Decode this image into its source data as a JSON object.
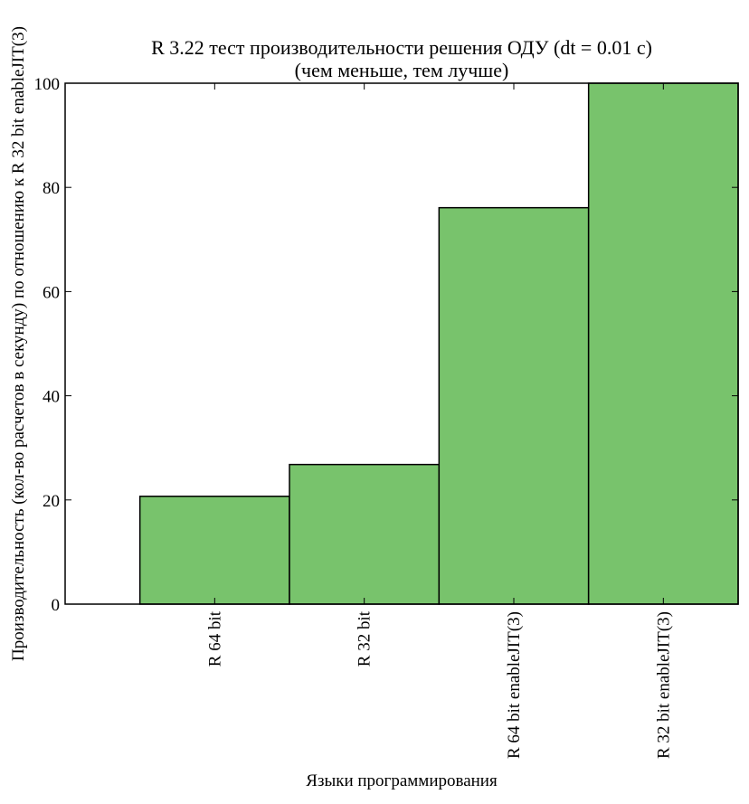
{
  "chart_data": {
    "type": "bar",
    "title_line1": "R 3.22 тест производительности решения ОДУ (dt = 0.01 с)",
    "title_line2": "(чем меньше, тем лучше)",
    "xlabel": "Языки программирования",
    "ylabel": "Производительность (кол-во расчетов в секунду) по отношению к R 32 bit enableJIT(3)",
    "categories": [
      "R 64 bit",
      "R 32 bit",
      "R 64 bit enableJIT(3)",
      "R 32 bit enableJIT(3)"
    ],
    "values": [
      20.7,
      26.8,
      76.1,
      100
    ],
    "ylim": [
      0,
      100
    ],
    "yticks": [
      0,
      20,
      40,
      60,
      80,
      100
    ],
    "xlim": [
      0,
      4.5
    ],
    "bar_width": 1.0,
    "bar_color": "#78c36c",
    "edge_color": "#000000",
    "grid": false,
    "legend": "none"
  }
}
